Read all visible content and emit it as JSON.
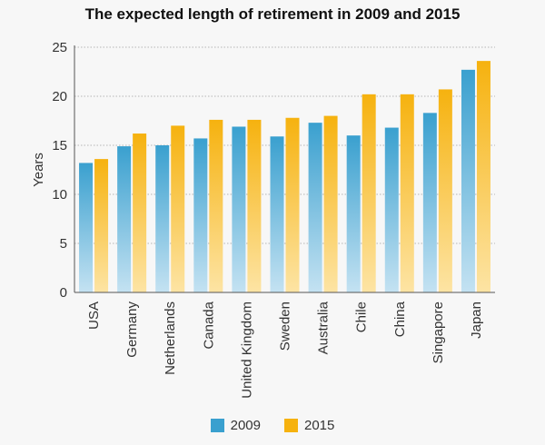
{
  "chart_data": {
    "type": "bar",
    "title": "The expected length of retirement in 2009 and 2015",
    "xlabel": "",
    "ylabel": "Years",
    "ylim": [
      0,
      25
    ],
    "yticks": [
      0,
      5,
      10,
      15,
      20,
      25
    ],
    "grid": true,
    "legend_position": "bottom",
    "categories": [
      "USA",
      "Germany",
      "Netherlands",
      "Canada",
      "United Kingdom",
      "Sweden",
      "Australia",
      "Chile",
      "China",
      "Singapore",
      "Japan"
    ],
    "series": [
      {
        "name": "2009",
        "color": "#3aa0cf",
        "values": [
          13.2,
          14.9,
          15.0,
          15.7,
          16.9,
          15.9,
          17.3,
          16.0,
          16.8,
          18.3,
          22.7
        ]
      },
      {
        "name": "2015",
        "color": "#f6b20f",
        "values": [
          13.6,
          16.2,
          17.0,
          17.6,
          17.6,
          17.8,
          18.0,
          20.2,
          20.2,
          20.7,
          23.6
        ]
      }
    ]
  }
}
